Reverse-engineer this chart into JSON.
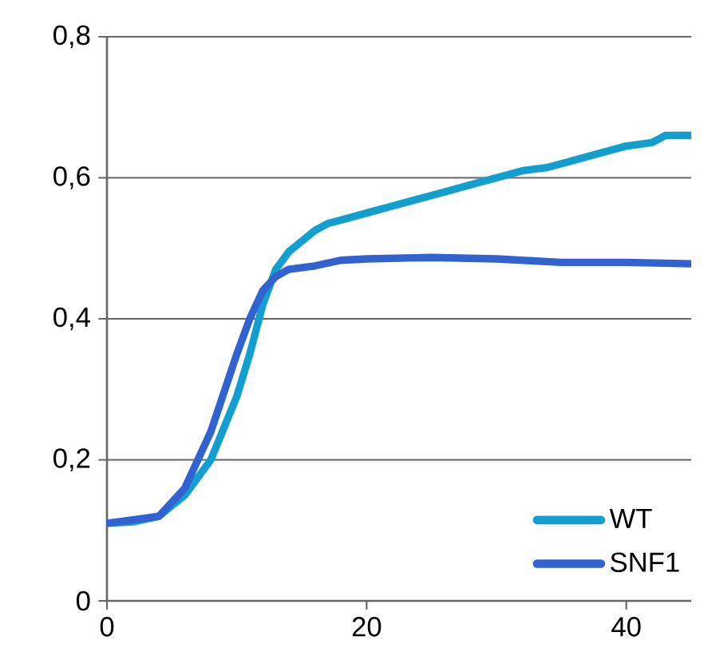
{
  "chart_data": {
    "type": "line",
    "series": [
      {
        "name": "WT",
        "color": "#129fd0",
        "x": [
          0,
          2,
          4,
          6,
          8,
          10,
          11,
          12,
          13,
          14,
          15,
          16,
          17,
          18,
          20,
          22,
          24,
          26,
          28,
          30,
          32,
          34,
          36,
          38,
          40,
          42,
          43,
          45
        ],
        "values": [
          0.11,
          0.112,
          0.12,
          0.15,
          0.2,
          0.29,
          0.35,
          0.42,
          0.47,
          0.495,
          0.51,
          0.525,
          0.535,
          0.54,
          0.55,
          0.56,
          0.57,
          0.58,
          0.59,
          0.6,
          0.61,
          0.615,
          0.625,
          0.635,
          0.645,
          0.65,
          0.66,
          0.66
        ]
      },
      {
        "name": "SNF1",
        "color": "#3262d0",
        "x": [
          0,
          2,
          4,
          6,
          8,
          10,
          11,
          12,
          13,
          14,
          16,
          18,
          20,
          25,
          30,
          35,
          40,
          45
        ],
        "values": [
          0.11,
          0.115,
          0.12,
          0.16,
          0.24,
          0.35,
          0.4,
          0.44,
          0.46,
          0.47,
          0.475,
          0.483,
          0.485,
          0.487,
          0.485,
          0.48,
          0.48,
          0.478
        ]
      }
    ],
    "xlim": [
      0,
      45
    ],
    "xticks": [
      0,
      20,
      40
    ],
    "ylim": [
      0,
      0.8
    ],
    "yticks": [
      {
        "value": 0,
        "label": "0"
      },
      {
        "value": 0.2,
        "label": "0,2"
      },
      {
        "value": 0.4,
        "label": "0,4"
      },
      {
        "value": 0.6,
        "label": "0,6"
      },
      {
        "value": 0.8,
        "label": "0,8"
      }
    ],
    "grid": "y",
    "legend": "bottom right",
    "marker": "none",
    "line_style": "solid"
  }
}
